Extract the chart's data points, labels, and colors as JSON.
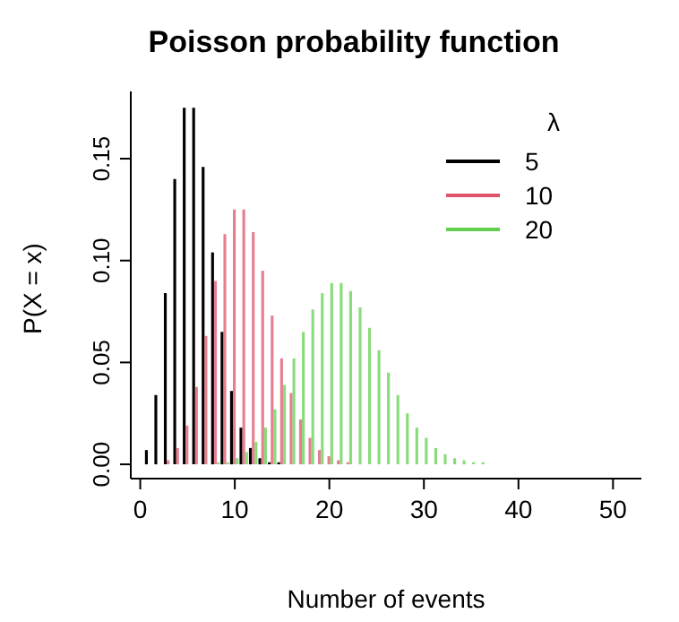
{
  "chart_data": {
    "type": "bar",
    "title": "Poisson probability function",
    "xlabel": "Number of events",
    "ylabel": "P(X = x)",
    "legend_title": "λ",
    "legend": "top right",
    "grid": false,
    "x": [
      1,
      2,
      3,
      4,
      5,
      6,
      7,
      8,
      9,
      10,
      11,
      12,
      13,
      14,
      15,
      16,
      17,
      18,
      19,
      20,
      21,
      22,
      23,
      24,
      25,
      26,
      27,
      28,
      29,
      30,
      31,
      32,
      33,
      34,
      35,
      36,
      37,
      38,
      39,
      40,
      41,
      42,
      43,
      44,
      45,
      46,
      47,
      48,
      49,
      50,
      51
    ],
    "series": [
      {
        "name": "5",
        "color": "#000000",
        "values": [
          0.007,
          0.034,
          0.084,
          0.14,
          0.175,
          0.175,
          0.146,
          0.104,
          0.065,
          0.036,
          0.018,
          0.008,
          0.003,
          0.001,
          0.001,
          0,
          0,
          0,
          0,
          0,
          0,
          0,
          0,
          0,
          0,
          0,
          0,
          0,
          0,
          0,
          0,
          0,
          0,
          0,
          0,
          0,
          0,
          0,
          0,
          0,
          0,
          0,
          0,
          0,
          0,
          0,
          0,
          0,
          0,
          0,
          0
        ]
      },
      {
        "name": "10",
        "color": "#df536b",
        "values": [
          0,
          0,
          0.002,
          0.008,
          0.019,
          0.038,
          0.063,
          0.09,
          0.113,
          0.125,
          0.125,
          0.114,
          0.095,
          0.073,
          0.052,
          0.035,
          0.022,
          0.013,
          0.007,
          0.004,
          0.002,
          0.001,
          0,
          0,
          0,
          0,
          0,
          0,
          0,
          0,
          0,
          0,
          0,
          0,
          0,
          0,
          0,
          0,
          0,
          0,
          0,
          0,
          0,
          0,
          0,
          0,
          0,
          0,
          0,
          0,
          0
        ]
      },
      {
        "name": "20",
        "color": "#61d04f",
        "values": [
          0,
          0,
          0,
          0,
          0,
          0,
          0,
          0.001,
          0.001,
          0.003,
          0.006,
          0.011,
          0.018,
          0.027,
          0.039,
          0.052,
          0.065,
          0.076,
          0.084,
          0.089,
          0.089,
          0.085,
          0.077,
          0.067,
          0.056,
          0.045,
          0.034,
          0.025,
          0.018,
          0.013,
          0.008,
          0.005,
          0.003,
          0.002,
          0.001,
          0.001,
          0,
          0,
          0,
          0,
          0,
          0,
          0,
          0,
          0,
          0,
          0,
          0,
          0,
          0,
          0
        ]
      }
    ],
    "xlim": [
      -1,
      53
    ],
    "xticks": [
      0,
      10,
      20,
      30,
      40,
      50
    ],
    "ylim": [
      -0.007,
      0.183
    ],
    "yticks": [
      {
        "value": 0,
        "label": "0.00"
      },
      0.05,
      {
        "value": 0.1,
        "label": "0.10"
      },
      0.15
    ]
  }
}
